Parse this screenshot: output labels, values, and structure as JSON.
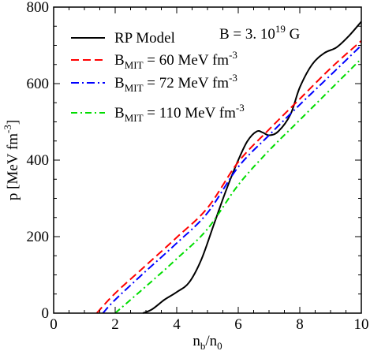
{
  "chart_data": {
    "type": "line",
    "annotation": {
      "prefix": "B = 3.  10",
      "sup": "19",
      "suffix": " G"
    },
    "xlabel": {
      "main": "n",
      "sub1": "b",
      "mid": "/n",
      "sub2": "0"
    },
    "ylabel": {
      "main": "p [MeV fm",
      "sup": "-3",
      "close": "]"
    },
    "xlim": [
      0,
      10
    ],
    "ylim": [
      0,
      800
    ],
    "xticks": [
      0,
      2,
      4,
      6,
      8,
      10
    ],
    "yticks": [
      0,
      200,
      400,
      600,
      800
    ],
    "grid": false,
    "legend_position": "top-left",
    "series": [
      {
        "label": "RP Model",
        "color": "#000000",
        "style": "solid",
        "points": [
          [
            2.9,
            0
          ],
          [
            3.2,
            10
          ],
          [
            3.6,
            35
          ],
          [
            4.0,
            55
          ],
          [
            4.4,
            80
          ],
          [
            4.8,
            140
          ],
          [
            5.2,
            230
          ],
          [
            5.6,
            320
          ],
          [
            6.0,
            400
          ],
          [
            6.3,
            450
          ],
          [
            6.6,
            475
          ],
          [
            6.8,
            472
          ],
          [
            7.0,
            465
          ],
          [
            7.3,
            475
          ],
          [
            7.7,
            520
          ],
          [
            8.0,
            590
          ],
          [
            8.4,
            650
          ],
          [
            8.8,
            680
          ],
          [
            9.2,
            695
          ],
          [
            9.6,
            725
          ],
          [
            10.0,
            762
          ]
        ]
      },
      {
        "label": {
          "main": "B",
          "sub": "MIT",
          "value": " = 60 MeV fm",
          "sup": "-3"
        },
        "color": "#ff0000",
        "style": "dashed",
        "points": [
          [
            1.4,
            0
          ],
          [
            2,
            52
          ],
          [
            3,
            125
          ],
          [
            4,
            198
          ],
          [
            5,
            275
          ],
          [
            6,
            395
          ],
          [
            7,
            480
          ],
          [
            8,
            560
          ],
          [
            9,
            640
          ],
          [
            10,
            712
          ]
        ]
      },
      {
        "label": {
          "main": "B",
          "sub": "MIT",
          "value": " = 72 MeV fm",
          "sup": "-3"
        },
        "color": "#0000ff",
        "style": "dashdot",
        "points": [
          [
            1.6,
            0
          ],
          [
            2,
            35
          ],
          [
            3,
            110
          ],
          [
            4,
            183
          ],
          [
            5,
            262
          ],
          [
            6,
            382
          ],
          [
            7,
            465
          ],
          [
            8,
            545
          ],
          [
            9,
            622
          ],
          [
            10,
            700
          ]
        ]
      },
      {
        "label": {
          "main": "B",
          "sub": "MIT",
          "value": " = 110 MeV fm",
          "sup": "-3"
        },
        "color": "#00dd00",
        "style": "dashdot",
        "points": [
          [
            2.0,
            0
          ],
          [
            3,
            70
          ],
          [
            4,
            142
          ],
          [
            5,
            220
          ],
          [
            6,
            335
          ],
          [
            7,
            425
          ],
          [
            8,
            505
          ],
          [
            9,
            585
          ],
          [
            10,
            665
          ]
        ]
      }
    ]
  }
}
